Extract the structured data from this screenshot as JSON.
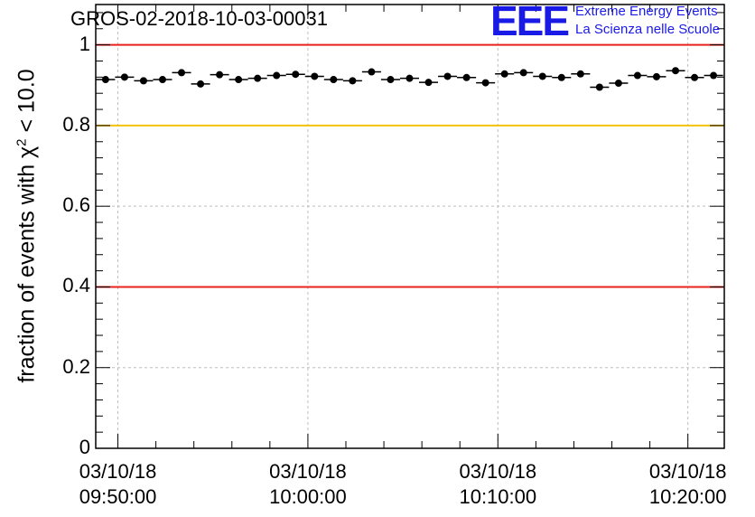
{
  "header": {
    "run_title": "GROS-02-2018-10-03-00031",
    "logo_text": "EEE",
    "logo_line1": "Extreme Energy Events",
    "logo_line2": "La Scienza nelle Scuole"
  },
  "colors": {
    "logo": "#1a1ae6",
    "threshold_red": "#e8231c",
    "threshold_yellow": "#f5c200",
    "grid": "#bdbdbd",
    "points": "#000000"
  },
  "chart_data": {
    "type": "scatter",
    "title": "GROS-02-2018-10-03-00031",
    "ylabel": "fraction of events with χ² < 10.0",
    "ylabel_parts": {
      "pre": "fraction of events with χ",
      "sup": "2",
      "post": " < 10.0"
    },
    "xlim": [
      "09:48:50",
      "10:21:55"
    ],
    "ylim": [
      0,
      1.1
    ],
    "yticks": [
      {
        "value": 0,
        "label": "0"
      },
      {
        "value": 0.2,
        "label": "0.2"
      },
      {
        "value": 0.4,
        "label": "0.4"
      },
      {
        "value": 0.6,
        "label": "0.6"
      },
      {
        "value": 0.8,
        "label": "0.8"
      },
      {
        "value": 1.0,
        "label": "1"
      }
    ],
    "xticks": [
      {
        "value": "09:50:00",
        "line1": "03/10/18",
        "line2": "09:50:00"
      },
      {
        "value": "10:00:00",
        "line1": "03/10/18",
        "line2": "10:00:00"
      },
      {
        "value": "10:10:00",
        "line1": "03/10/18",
        "line2": "10:10:00"
      },
      {
        "value": "10:20:00",
        "line1": "03/10/18",
        "line2": "10:20:00"
      }
    ],
    "reference_lines": [
      {
        "y": 1.0,
        "color": "#e8231c"
      },
      {
        "y": 0.8,
        "color": "#f5c200"
      },
      {
        "y": 0.4,
        "color": "#e8231c"
      }
    ],
    "grid": true,
    "bin_width": "00:01:00",
    "x": [
      "09:49:21",
      "09:50:21",
      "09:51:21",
      "09:52:21",
      "09:53:21",
      "09:54:21",
      "09:55:21",
      "09:56:21",
      "09:57:21",
      "09:58:21",
      "09:59:21",
      "10:00:21",
      "10:01:21",
      "10:02:21",
      "10:03:21",
      "10:04:21",
      "10:05:21",
      "10:06:21",
      "10:07:21",
      "10:08:21",
      "10:09:21",
      "10:10:21",
      "10:11:21",
      "10:12:21",
      "10:13:21",
      "10:14:21",
      "10:15:21",
      "10:16:21",
      "10:17:21",
      "10:18:21",
      "10:19:21",
      "10:20:21",
      "10:21:21"
    ],
    "y": [
      0.914,
      0.92,
      0.911,
      0.914,
      0.931,
      0.903,
      0.926,
      0.914,
      0.917,
      0.924,
      0.927,
      0.922,
      0.914,
      0.911,
      0.933,
      0.914,
      0.917,
      0.907,
      0.922,
      0.919,
      0.906,
      0.928,
      0.931,
      0.922,
      0.919,
      0.928,
      0.895,
      0.905,
      0.924,
      0.921,
      0.936,
      0.919,
      0.924
    ]
  }
}
